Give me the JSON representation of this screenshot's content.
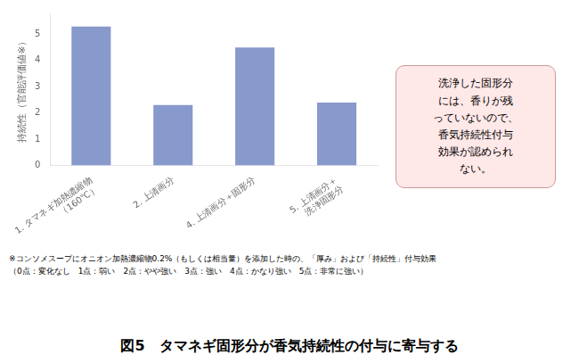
{
  "chart_data": {
    "type": "bar",
    "title": "図5　タマネギ固形分が香気持続性の付与に寄与する",
    "categories": [
      "1. タマネギ加熱濃縮物\n（160℃）",
      "2. 上清画分",
      "4. 上清画分＋固形分",
      "5. 上清画分＋\n洗浄固形分"
    ],
    "values": [
      5.3,
      2.3,
      4.5,
      2.4
    ],
    "color": "#8899cc",
    "ylabel": "持続性（官能評価値※）",
    "ylim": [
      0,
      5.8
    ],
    "yticks": [
      0,
      1,
      2,
      3,
      4,
      5
    ],
    "grid": false,
    "annotations": [
      "洗浄した固形分\nには、香りが残\nっていないので、\n香気持続性付与\n効果が認められ\nない。",
      "※コンソメスープにオニオン加熱濃縮物0.2%（もしくは相当量）を添加した時の、「厚み」および「持続性」付与効果",
      "（0点：変化なし　1点：弱い　2点：やや強い　3点：強い　4点：かなり強い　5点：非常に強い）"
    ]
  }
}
